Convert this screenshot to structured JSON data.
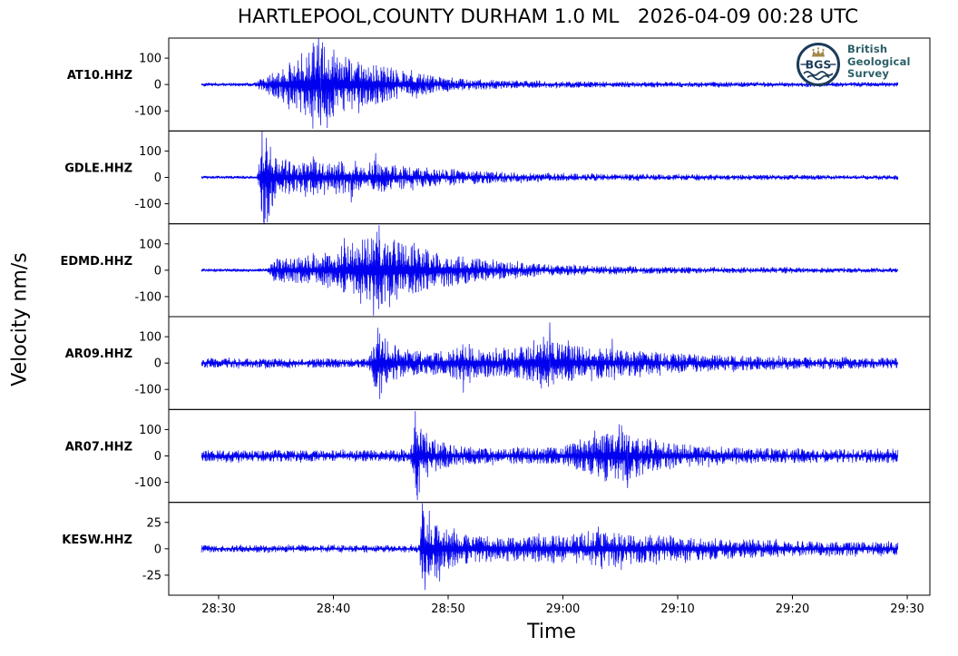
{
  "figure": {
    "title": "HARTLEPOOL,COUNTY DURHAM 1.0 ML   2026-04-09 00:28 UTC",
    "xlabel": "Time",
    "ylabel": "Velocity nm/s"
  },
  "logo": {
    "acronym": "BGS",
    "org_lines": [
      "British",
      "Geological",
      "Survey"
    ]
  },
  "colors": {
    "trace": "#0000ee",
    "axis": "#000000",
    "background": "#ffffff",
    "logo_navy": "#1c3b5a",
    "logo_gold": "#a1894a",
    "logo_teal": "#2b5f68"
  },
  "chart_data": {
    "type": "line",
    "kind": "seismogram-record-section",
    "title": "HARTLEPOOL,COUNTY DURHAM 1.0 ML   2026-04-09 00:28 UTC",
    "xlabel": "Time",
    "ylabel": "Velocity nm/s",
    "grid": false,
    "legend": "none",
    "x_tick_labels": [
      "28:30",
      "28:40",
      "28:50",
      "29:00",
      "29:10",
      "29:20",
      "29:30"
    ],
    "stations": [
      {
        "label": "AT10.HHZ",
        "y_tick_labels": [
          "100",
          "0",
          "-100"
        ],
        "y_tick_values": [
          100,
          0,
          -100
        ],
        "ylim": 176,
        "seed": 101,
        "envelope": [
          [
            0,
            7
          ],
          [
            0.075,
            7
          ],
          [
            0.09,
            30
          ],
          [
            0.11,
            55
          ],
          [
            0.13,
            90
          ],
          [
            0.155,
            125
          ],
          [
            0.17,
            170
          ],
          [
            0.19,
            120
          ],
          [
            0.22,
            95
          ],
          [
            0.26,
            70
          ],
          [
            0.3,
            48
          ],
          [
            0.34,
            32
          ],
          [
            0.38,
            22
          ],
          [
            0.44,
            15
          ],
          [
            0.52,
            12
          ],
          [
            0.65,
            11
          ],
          [
            0.8,
            10
          ],
          [
            1,
            9
          ]
        ],
        "spikes": [
          [
            0.168,
            176
          ],
          [
            0.171,
            -155
          ],
          [
            0.158,
            -122
          ],
          [
            0.19,
            132
          ]
        ]
      },
      {
        "label": "GDLE.HHZ",
        "y_tick_labels": [
          "100",
          "0",
          "-100"
        ],
        "y_tick_values": [
          100,
          0,
          -100
        ],
        "ylim": 176,
        "seed": 202,
        "envelope": [
          [
            0,
            6
          ],
          [
            0.08,
            6
          ],
          [
            0.088,
            178
          ],
          [
            0.096,
            150
          ],
          [
            0.105,
            90
          ],
          [
            0.12,
            65
          ],
          [
            0.14,
            55
          ],
          [
            0.16,
            72
          ],
          [
            0.18,
            55
          ],
          [
            0.2,
            62
          ],
          [
            0.215,
            80
          ],
          [
            0.23,
            55
          ],
          [
            0.25,
            68
          ],
          [
            0.27,
            50
          ],
          [
            0.3,
            42
          ],
          [
            0.34,
            34
          ],
          [
            0.38,
            27
          ],
          [
            0.44,
            20
          ],
          [
            0.52,
            15
          ],
          [
            0.65,
            12
          ],
          [
            0.8,
            10
          ],
          [
            1,
            9
          ]
        ],
        "spikes": [
          [
            0.087,
            178
          ],
          [
            0.09,
            -176
          ],
          [
            0.093,
            150
          ],
          [
            0.215,
            -95
          ],
          [
            0.25,
            92
          ]
        ]
      },
      {
        "label": "EDMD.HHZ",
        "y_tick_labels": [
          "100",
          "0",
          "-100"
        ],
        "y_tick_values": [
          100,
          0,
          -100
        ],
        "ylim": 176,
        "seed": 303,
        "envelope": [
          [
            0,
            6
          ],
          [
            0.095,
            6
          ],
          [
            0.105,
            45
          ],
          [
            0.13,
            48
          ],
          [
            0.15,
            55
          ],
          [
            0.17,
            62
          ],
          [
            0.19,
            75
          ],
          [
            0.21,
            95
          ],
          [
            0.23,
            115
          ],
          [
            0.25,
            135
          ],
          [
            0.27,
            120
          ],
          [
            0.29,
            105
          ],
          [
            0.31,
            88
          ],
          [
            0.34,
            70
          ],
          [
            0.37,
            55
          ],
          [
            0.4,
            45
          ],
          [
            0.44,
            32
          ],
          [
            0.48,
            26
          ],
          [
            0.52,
            20
          ],
          [
            0.58,
            16
          ],
          [
            0.68,
            13
          ],
          [
            0.82,
            11
          ],
          [
            1,
            9
          ]
        ],
        "spikes": [
          [
            0.255,
            170
          ],
          [
            0.247,
            -172
          ],
          [
            0.27,
            -140
          ],
          [
            0.205,
            122
          ]
        ]
      },
      {
        "label": "AR09.HHZ",
        "y_tick_labels": [
          "100",
          "0",
          "-100"
        ],
        "y_tick_values": [
          100,
          0,
          -100
        ],
        "ylim": 176,
        "seed": 404,
        "envelope": [
          [
            0,
            18
          ],
          [
            0.24,
            18
          ],
          [
            0.255,
            130
          ],
          [
            0.27,
            75
          ],
          [
            0.29,
            55
          ],
          [
            0.32,
            45
          ],
          [
            0.35,
            48
          ],
          [
            0.375,
            72
          ],
          [
            0.4,
            55
          ],
          [
            0.43,
            48
          ],
          [
            0.455,
            60
          ],
          [
            0.48,
            78
          ],
          [
            0.5,
            95
          ],
          [
            0.52,
            75
          ],
          [
            0.55,
            65
          ],
          [
            0.58,
            58
          ],
          [
            0.62,
            48
          ],
          [
            0.66,
            40
          ],
          [
            0.72,
            33
          ],
          [
            0.78,
            28
          ],
          [
            0.86,
            24
          ],
          [
            1,
            20
          ]
        ],
        "spikes": [
          [
            0.253,
            134
          ],
          [
            0.256,
            -136
          ],
          [
            0.376,
            -112
          ],
          [
            0.5,
            154
          ],
          [
            0.488,
            -96
          ],
          [
            0.59,
            92
          ]
        ]
      },
      {
        "label": "AR07.HHZ",
        "y_tick_labels": [
          "100",
          "0",
          "-100"
        ],
        "y_tick_values": [
          100,
          0,
          -100
        ],
        "ylim": 176,
        "seed": 505,
        "envelope": [
          [
            0,
            22
          ],
          [
            0.3,
            22
          ],
          [
            0.308,
            135
          ],
          [
            0.322,
            85
          ],
          [
            0.34,
            55
          ],
          [
            0.37,
            38
          ],
          [
            0.41,
            30
          ],
          [
            0.45,
            32
          ],
          [
            0.49,
            30
          ],
          [
            0.52,
            38
          ],
          [
            0.55,
            60
          ],
          [
            0.575,
            85
          ],
          [
            0.6,
            100
          ],
          [
            0.625,
            80
          ],
          [
            0.65,
            60
          ],
          [
            0.68,
            48
          ],
          [
            0.72,
            38
          ],
          [
            0.77,
            32
          ],
          [
            0.83,
            28
          ],
          [
            0.9,
            26
          ],
          [
            1,
            28
          ]
        ],
        "spikes": [
          [
            0.307,
            170
          ],
          [
            0.31,
            -168
          ],
          [
            0.6,
            120
          ],
          [
            0.612,
            -122
          ],
          [
            0.565,
            96
          ]
        ]
      },
      {
        "label": "KESW.HHZ",
        "y_tick_labels": [
          "25",
          "0",
          "-25"
        ],
        "y_tick_values": [
          25,
          0,
          -25
        ],
        "ylim": 44,
        "seed": 606,
        "envelope": [
          [
            0,
            3.5
          ],
          [
            0.3,
            3.5
          ],
          [
            0.312,
            4
          ],
          [
            0.318,
            40
          ],
          [
            0.33,
            30
          ],
          [
            0.345,
            22
          ],
          [
            0.365,
            16
          ],
          [
            0.39,
            13
          ],
          [
            0.43,
            12
          ],
          [
            0.47,
            12.5
          ],
          [
            0.51,
            13
          ],
          [
            0.55,
            15
          ],
          [
            0.575,
            17
          ],
          [
            0.6,
            15
          ],
          [
            0.64,
            13.5
          ],
          [
            0.68,
            12
          ],
          [
            0.73,
            10.5
          ],
          [
            0.79,
            9
          ],
          [
            0.86,
            7.5
          ],
          [
            0.93,
            6.5
          ],
          [
            1,
            6
          ]
        ],
        "spikes": [
          [
            0.317,
            43
          ],
          [
            0.321,
            -39
          ],
          [
            0.327,
            36
          ],
          [
            0.342,
            -31
          ],
          [
            0.57,
            21
          ],
          [
            0.603,
            -20
          ]
        ]
      }
    ]
  }
}
